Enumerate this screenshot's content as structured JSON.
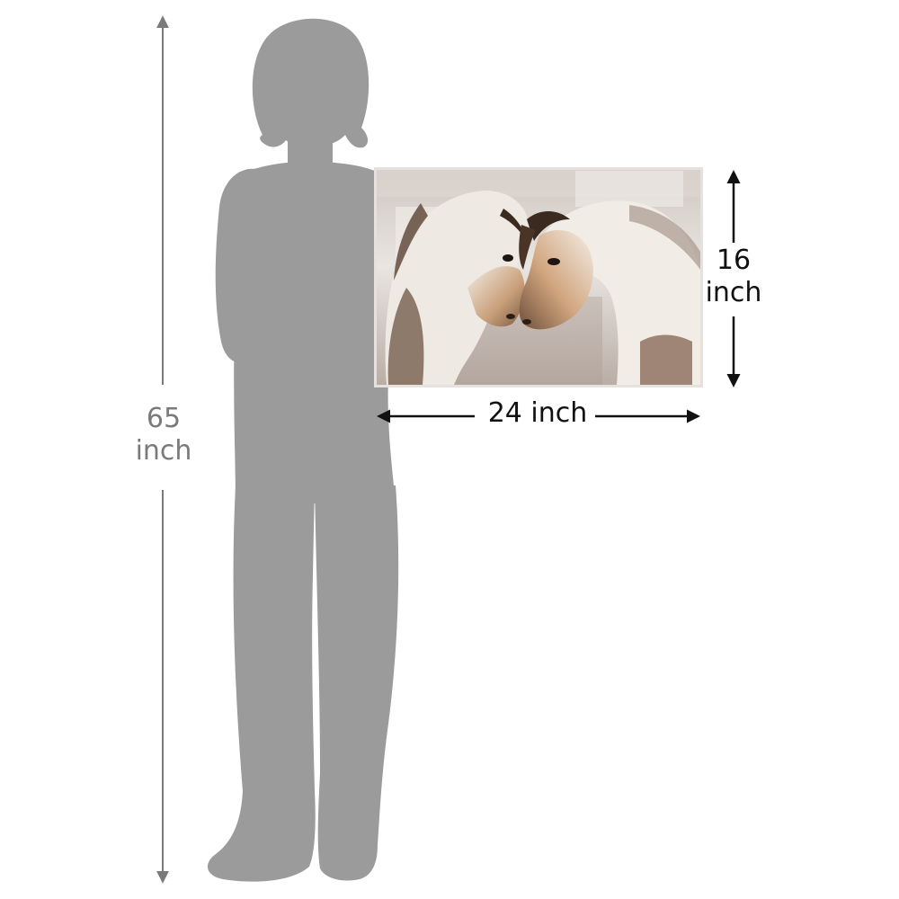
{
  "dimensions": {
    "person_height": {
      "value": "65",
      "unit": "inch"
    },
    "canvas_height": {
      "value": "16",
      "unit": "inch"
    },
    "canvas_width": {
      "value": "24 inch"
    }
  },
  "colors": {
    "silhouette": "#9b9b9b",
    "measure_gray": "#7a7a7a",
    "measure_black": "#111111",
    "canvas_frame": "#d8d4cf"
  },
  "artwork": {
    "subject": "two-horses-painting"
  }
}
